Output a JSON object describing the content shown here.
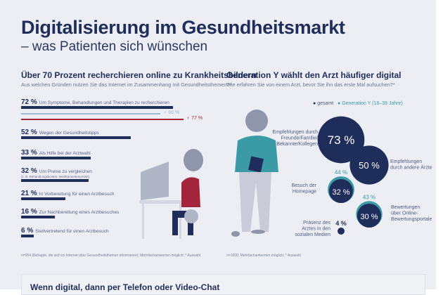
{
  "title": "Digitalisierung im Gesundheitsmarkt",
  "subtitle": "– was Patienten sich wünschen",
  "left": {
    "heading": "Über 70 Prozent recherchieren online zu Krankheitsbildern",
    "question": "Aus welchen Gründen nutzen Sie das Internet im Zusammenhang mit Gesundheitsthemen?*",
    "footnote": "n=954 (Befragte, die sich im Internet über Gesundheitsthemen informieren); Mehrfachantworten möglich; * Auswahl"
  },
  "right": {
    "heading": "Generation Y wählt den Arzt häufiger digital",
    "question": "Wie erfahren Sie von einem Arzt, bevor Sie ihn das erste Mal aufsuchen?*",
    "footnote": "n=1000; Mehrfachantworten möglich; * Auswahl",
    "legend": [
      "gesamt",
      "Generation Y (18–39 Jahre)"
    ]
  },
  "bottom": {
    "heading": "Wenn digital, dann per Telefon oder Video-Chat"
  },
  "colors": {
    "navy": "#1f2d5a",
    "light_blue": "#9ab8d8",
    "red": "#a3243b",
    "teal": "#3a9aa6",
    "background": "#eceef4"
  },
  "chart_data": [
    {
      "type": "bar",
      "orientation": "horizontal",
      "title": "Über 70 Prozent recherchieren online zu Krankheitsbildern",
      "xlim": [
        0,
        100
      ],
      "categories": [
        "Um Symptome, Behandlungen und Therapien zu recherchieren",
        "Wegen der Gesundheitstipps",
        "Als Hilfe bei der Arztwahl",
        "Um Preise zu vergleichen",
        "In Vorbereitung für einen Arztbesuch",
        "Zur Nachbereitung eines Arztbesuches",
        "Stellvertretend für einen Arztbesuch"
      ],
      "sublabels": [
        "",
        "",
        "",
        "(z. B. Behandlungskosten, Medikamentenpreise)",
        "",
        "",
        ""
      ],
      "values": [
        72,
        52,
        33,
        32,
        21,
        16,
        6
      ],
      "value_labels": [
        "72 %",
        "52 %",
        "33 %",
        "32 %",
        "21 %",
        "16 %",
        "6 %"
      ],
      "extra": [
        {
          "name": "♂",
          "value": 66,
          "label": "♂ 66 %"
        },
        {
          "name": "♀",
          "value": 77,
          "label": "♀ 77 %"
        }
      ]
    },
    {
      "type": "bubble",
      "title": "Generation Y wählt den Arzt häufiger digital",
      "categories": [
        "Empfehlungen durch Freunde/Familie/ Bekannte/Kollegen",
        "Empfehlungen durch andere Ärzte",
        "Besuch der Homepage",
        "Bewertungen über Online- Bewertungsportale",
        "Präsenz des Arztes in den sozialen Medien"
      ],
      "series": [
        {
          "name": "gesamt",
          "values": [
            73,
            50,
            32,
            30,
            4
          ],
          "labels": [
            "73 %",
            "50 %",
            "32 %",
            "30 %",
            "4 %"
          ]
        },
        {
          "name": "Generation Y (18–39 Jahre)",
          "values": [
            null,
            null,
            44,
            43,
            null
          ],
          "labels": [
            "",
            "",
            "44 %",
            "43 %",
            ""
          ]
        }
      ]
    }
  ]
}
